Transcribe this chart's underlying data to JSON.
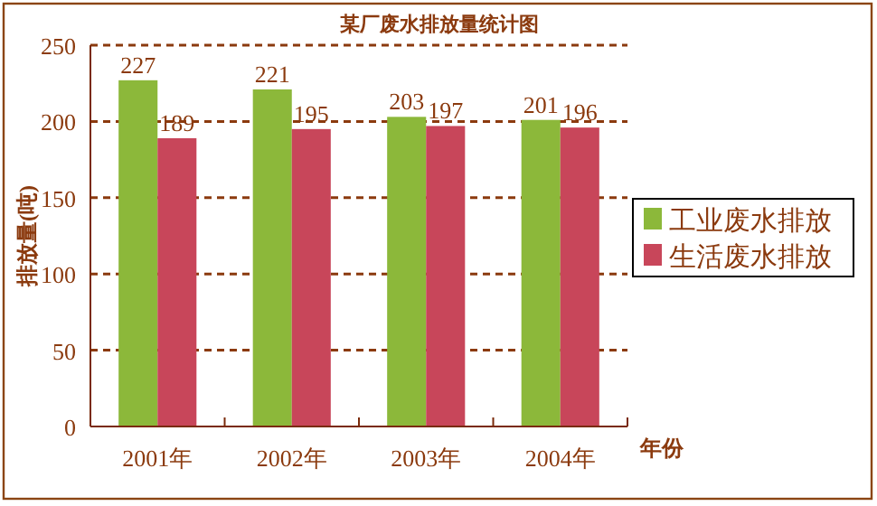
{
  "chart_data": {
    "type": "bar",
    "title": "某厂废水排放量统计图",
    "xlabel": "年份",
    "ylabel": "排放量(吨)",
    "categories": [
      "2001年",
      "2002年",
      "2003年",
      "2004年"
    ],
    "series": [
      {
        "name": "工业废水排放",
        "color": "#8cb83a",
        "values": [
          227,
          221,
          203,
          201
        ]
      },
      {
        "name": "生活废水排放",
        "color": "#c8465a",
        "values": [
          189,
          195,
          197,
          196
        ]
      }
    ],
    "ylim": [
      0,
      250
    ],
    "yticks": [
      0,
      50,
      100,
      150,
      200,
      250
    ],
    "grid": "y",
    "legend": "right",
    "data_labels": true
  }
}
